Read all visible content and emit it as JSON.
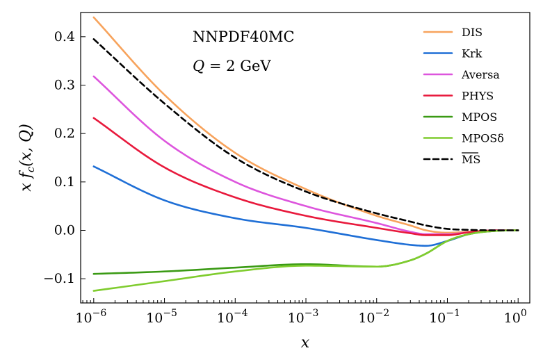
{
  "chart_data": {
    "type": "line",
    "title": "",
    "annotations": [
      "NNPDF40MC",
      "Q = 2 GeV"
    ],
    "xlabel": "x",
    "ylabel": "x f_c(x, Q)",
    "xscale": "log",
    "xlim": [
      1e-06,
      1.0
    ],
    "ylim": [
      -0.15,
      0.45
    ],
    "xticks": [
      {
        "value": 1e-06,
        "base": "10",
        "exp": "−6"
      },
      {
        "value": 1e-05,
        "base": "10",
        "exp": "−5"
      },
      {
        "value": 0.0001,
        "base": "10",
        "exp": "−4"
      },
      {
        "value": 0.001,
        "base": "10",
        "exp": "−3"
      },
      {
        "value": 0.01,
        "base": "10",
        "exp": "−2"
      },
      {
        "value": 0.1,
        "base": "10",
        "exp": "−1"
      },
      {
        "value": 1.0,
        "base": "10",
        "exp": "0"
      }
    ],
    "yticks": [
      {
        "value": -0.1,
        "label": "−0.1"
      },
      {
        "value": 0.0,
        "label": "0.0"
      },
      {
        "value": 0.1,
        "label": "0.1"
      },
      {
        "value": 0.2,
        "label": "0.2"
      },
      {
        "value": 0.3,
        "label": "0.3"
      },
      {
        "value": 0.4,
        "label": "0.4"
      }
    ],
    "legend_position": "top-right",
    "x": [
      1e-06,
      1e-05,
      0.0001,
      0.001,
      0.01,
      0.03,
      0.05,
      0.1,
      0.2,
      0.5,
      1.0
    ],
    "series": [
      {
        "name": "DIS",
        "color": "#f7a35c",
        "dash": "solid",
        "values": [
          0.44,
          0.28,
          0.16,
          0.085,
          0.03,
          0.01,
          0.0,
          -0.005,
          -0.003,
          0.0,
          0.0
        ]
      },
      {
        "name": "Krk",
        "color": "#1f6fd6",
        "dash": "solid",
        "values": [
          0.132,
          0.062,
          0.025,
          0.005,
          -0.02,
          -0.03,
          -0.032,
          -0.022,
          -0.008,
          0.0,
          0.0
        ]
      },
      {
        "name": "Aversa",
        "color": "#dd55dd",
        "dash": "solid",
        "values": [
          0.318,
          0.185,
          0.1,
          0.05,
          0.015,
          -0.003,
          -0.008,
          -0.008,
          -0.004,
          0.0,
          0.0
        ]
      },
      {
        "name": "PHYS",
        "color": "#e8193c",
        "dash": "solid",
        "values": [
          0.232,
          0.13,
          0.068,
          0.03,
          0.005,
          -0.006,
          -0.01,
          -0.01,
          -0.004,
          0.0,
          0.0
        ]
      },
      {
        "name": "MPOS",
        "color": "#3a9a14",
        "dash": "solid",
        "values": [
          -0.09,
          -0.085,
          -0.077,
          -0.07,
          -0.075,
          -0.062,
          -0.048,
          -0.022,
          -0.008,
          -0.001,
          0.0
        ]
      },
      {
        "name": "MPOSδ",
        "color": "#7fcc2e",
        "dash": "solid",
        "values": [
          -0.125,
          -0.105,
          -0.085,
          -0.073,
          -0.075,
          -0.062,
          -0.048,
          -0.022,
          -0.008,
          -0.001,
          0.0
        ]
      },
      {
        "name": "MS",
        "color": "#000000",
        "dash": "dashed",
        "values": [
          0.395,
          0.262,
          0.15,
          0.08,
          0.035,
          0.018,
          0.01,
          0.003,
          0.001,
          0.0,
          0.0
        ]
      }
    ]
  }
}
